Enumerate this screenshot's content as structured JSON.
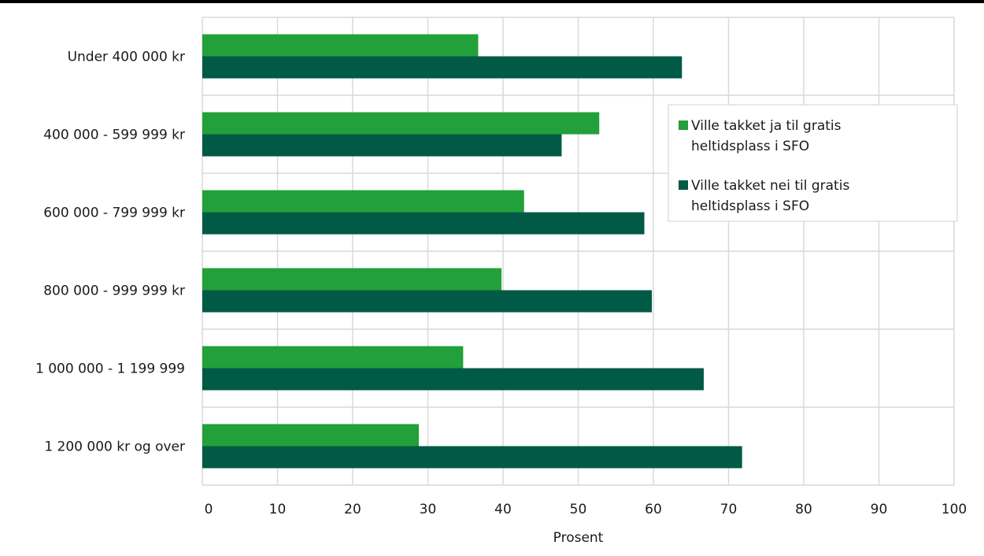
{
  "chart_data": {
    "type": "bar",
    "orientation": "horizontal",
    "categories": [
      "Under 400 000 kr",
      "400 000 - 599 999 kr",
      "600 000 - 799 999 kr",
      "800 000 - 999 999 kr",
      "1 000 000 - 1 199 999",
      "1 200 000 kr og over"
    ],
    "series": [
      {
        "name": "Ville takket ja til gratis heltidsplass i SFO",
        "color": "#22a03a",
        "values": [
          36.7,
          52.8,
          42.8,
          39.8,
          34.7,
          28.8
        ]
      },
      {
        "name": "Ville takket nei til gratis heltidsplass i SFO",
        "color": "#005a45",
        "values": [
          63.8,
          47.8,
          58.8,
          59.8,
          66.7,
          71.8
        ]
      }
    ],
    "xlabel": "Prosent",
    "ylabel": "",
    "xlim": [
      0,
      100
    ],
    "xticks": [
      "0",
      "10",
      "20",
      "30",
      "40",
      "50",
      "60",
      "70",
      "80",
      "90",
      "100"
    ],
    "grid": true,
    "legend_position": "top-right"
  }
}
